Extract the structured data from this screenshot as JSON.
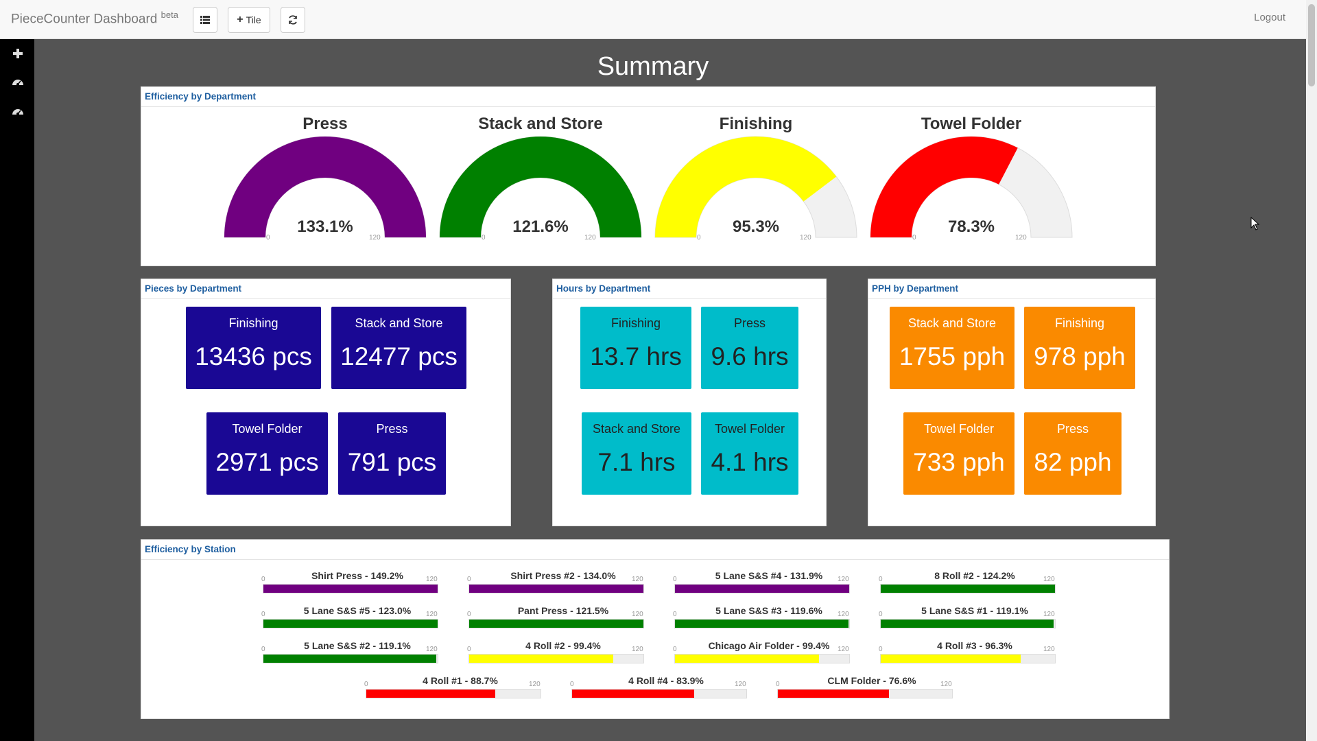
{
  "navbar": {
    "brand": "PieceCounter Dashboard",
    "brand_sup": "beta",
    "tile_button": "Tile",
    "logout": "Logout"
  },
  "page_title": "Summary",
  "efficiency_dept": {
    "title": "Efficiency by Department",
    "min_label": "0",
    "max_label": "120",
    "gauges": [
      {
        "name": "Press",
        "value": 133.1,
        "display": "133.1%",
        "color": "#700080"
      },
      {
        "name": "Stack and Store",
        "value": 121.6,
        "display": "121.6%",
        "color": "#008000"
      },
      {
        "name": "Finishing",
        "value": 95.3,
        "display": "95.3%",
        "color": "#ffff00"
      },
      {
        "name": "Towel Folder",
        "value": 78.3,
        "display": "78.3%",
        "color": "#ff0000"
      }
    ]
  },
  "pieces": {
    "title": "Pieces by Department",
    "tiles": [
      {
        "name": "Finishing",
        "value": "13436 pcs"
      },
      {
        "name": "Stack and Store",
        "value": "12477 pcs"
      },
      {
        "name": "Towel Folder",
        "value": "2971 pcs"
      },
      {
        "name": "Press",
        "value": "791 pcs"
      }
    ]
  },
  "hours": {
    "title": "Hours by Department",
    "tiles": [
      {
        "name": "Finishing",
        "value": "13.7 hrs"
      },
      {
        "name": "Press",
        "value": "9.6 hrs"
      },
      {
        "name": "Stack and Store",
        "value": "7.1 hrs"
      },
      {
        "name": "Towel Folder",
        "value": "4.1 hrs"
      }
    ]
  },
  "pph": {
    "title": "PPH by Department",
    "tiles": [
      {
        "name": "Stack and Store",
        "value": "1755 pph"
      },
      {
        "name": "Finishing",
        "value": "978 pph"
      },
      {
        "name": "Towel Folder",
        "value": "733 pph"
      },
      {
        "name": "Press",
        "value": "82 pph"
      }
    ]
  },
  "efficiency_station": {
    "title": "Efficiency by Station",
    "min_label": "0",
    "max_label": "120",
    "bars": [
      {
        "label": "Shirt Press - 149.2%",
        "value": 149.2,
        "color": "#700080"
      },
      {
        "label": "Shirt Press #2 - 134.0%",
        "value": 134.0,
        "color": "#700080"
      },
      {
        "label": "5 Lane S&S #4 - 131.9%",
        "value": 131.9,
        "color": "#700080"
      },
      {
        "label": "8 Roll #2 - 124.2%",
        "value": 124.2,
        "color": "#008000"
      },
      {
        "label": "5 Lane S&S #5 - 123.0%",
        "value": 123.0,
        "color": "#008000"
      },
      {
        "label": "Pant Press - 121.5%",
        "value": 121.5,
        "color": "#008000"
      },
      {
        "label": "5 Lane S&S #3 - 119.6%",
        "value": 119.6,
        "color": "#008000"
      },
      {
        "label": "5 Lane S&S #1 - 119.1%",
        "value": 119.1,
        "color": "#008000"
      },
      {
        "label": "5 Lane S&S #2 - 119.1%",
        "value": 119.1,
        "color": "#008000"
      },
      {
        "label": "4 Roll #2 - 99.4%",
        "value": 99.4,
        "color": "#ffff00"
      },
      {
        "label": "Chicago Air Folder - 99.4%",
        "value": 99.4,
        "color": "#ffff00"
      },
      {
        "label": "4 Roll #3 - 96.3%",
        "value": 96.3,
        "color": "#ffff00"
      },
      {
        "label": "4 Roll #1 - 88.7%",
        "value": 88.7,
        "color": "#ff0000"
      },
      {
        "label": "4 Roll #4 - 83.9%",
        "value": 83.9,
        "color": "#ff0000"
      },
      {
        "label": "CLM Folder - 76.6%",
        "value": 76.6,
        "color": "#ff0000"
      }
    ]
  }
}
